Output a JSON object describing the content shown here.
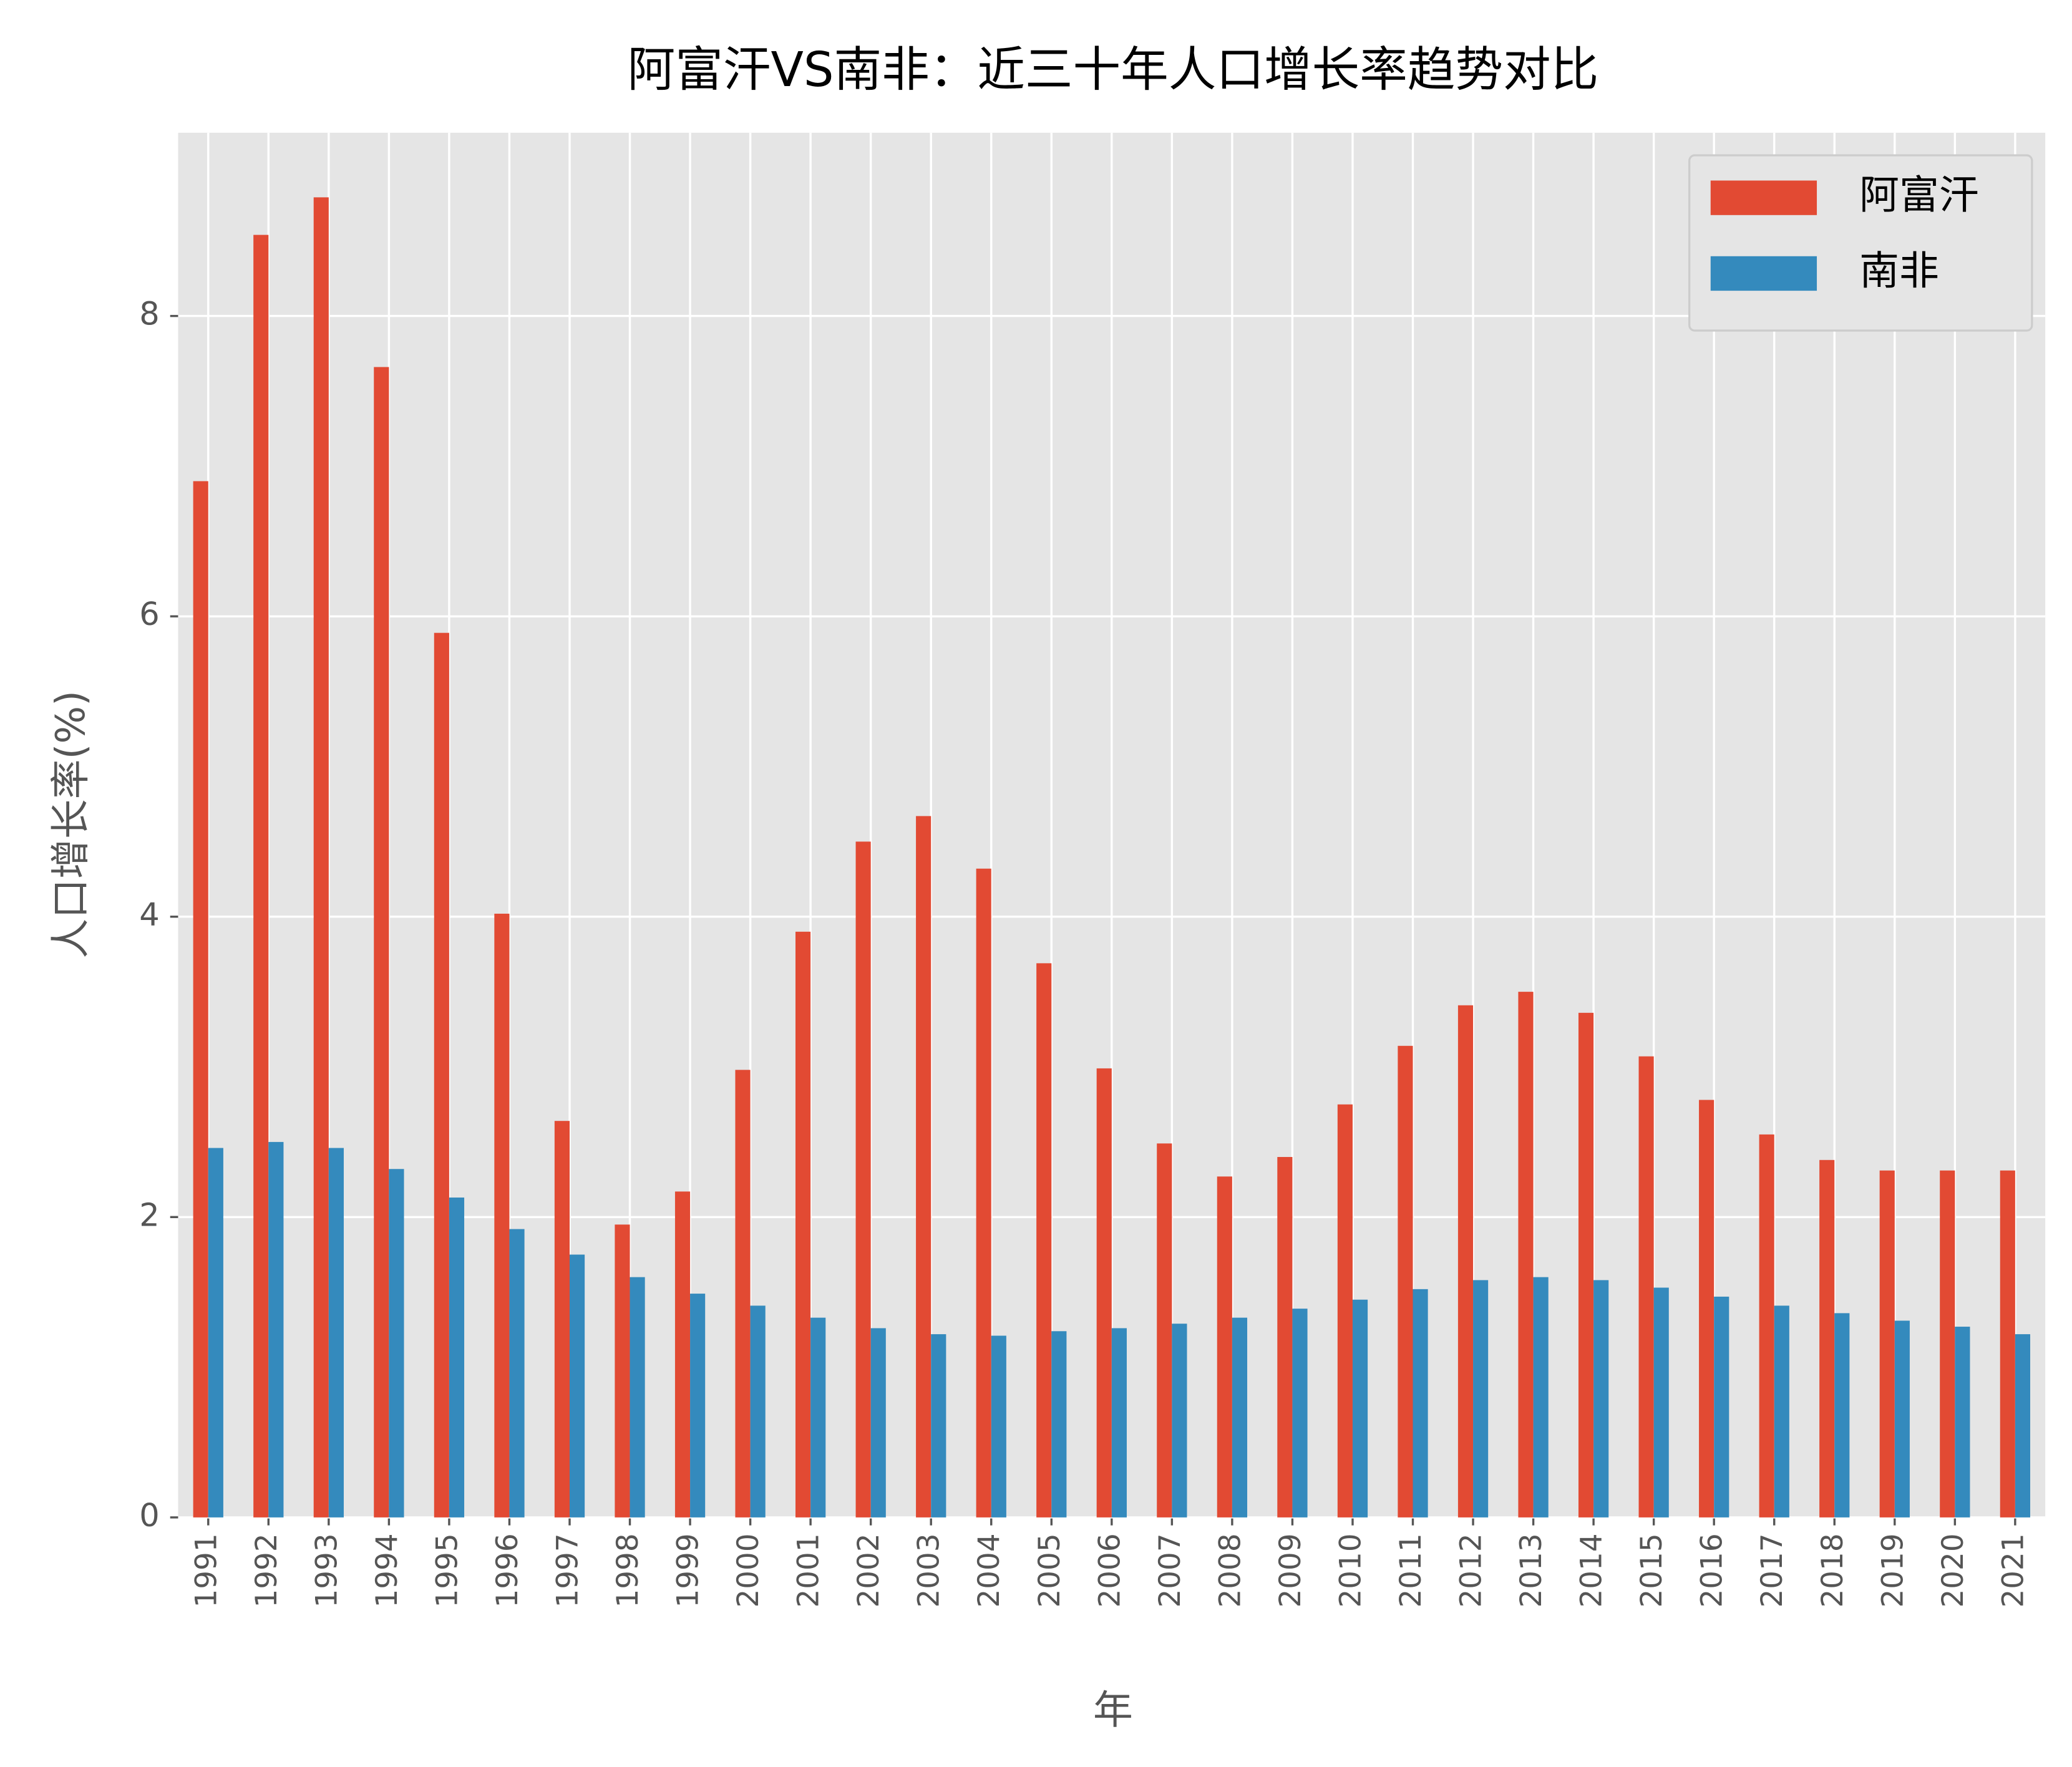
{
  "chart_data": {
    "type": "bar",
    "title": "阿富汗VS南非：近三十年人口增长率趋势对比",
    "x_label": "年",
    "y_label": "人口增长率(%)",
    "categories": [
      "1991",
      "1992",
      "1993",
      "1994",
      "1995",
      "1996",
      "1997",
      "1998",
      "1999",
      "2000",
      "2001",
      "2002",
      "2003",
      "2004",
      "2005",
      "2006",
      "2007",
      "2008",
      "2009",
      "2010",
      "2011",
      "2012",
      "2013",
      "2014",
      "2015",
      "2016",
      "2017",
      "2018",
      "2019",
      "2020",
      "2021"
    ],
    "series": [
      {
        "name": "阿富汗",
        "color": "#E24A33",
        "values": [
          6.9,
          8.54,
          8.79,
          7.66,
          5.89,
          4.02,
          2.64,
          1.95,
          2.17,
          2.98,
          3.9,
          4.5,
          4.67,
          4.32,
          3.69,
          2.99,
          2.49,
          2.27,
          2.4,
          2.75,
          3.14,
          3.41,
          3.5,
          3.36,
          3.07,
          2.78,
          2.55,
          2.38,
          2.31,
          2.31,
          2.31
        ]
      },
      {
        "name": "南非",
        "color": "#348ABD",
        "values": [
          2.46,
          2.5,
          2.46,
          2.32,
          2.13,
          1.92,
          1.75,
          1.6,
          1.49,
          1.41,
          1.33,
          1.26,
          1.22,
          1.21,
          1.24,
          1.26,
          1.29,
          1.33,
          1.39,
          1.45,
          1.52,
          1.58,
          1.6,
          1.58,
          1.53,
          1.47,
          1.41,
          1.36,
          1.31,
          1.27,
          1.22
        ]
      }
    ],
    "ylim": [
      0,
      9.22
    ],
    "yticks": [
      0,
      2,
      4,
      6,
      8
    ],
    "grid": true,
    "legend": "upper right"
  }
}
